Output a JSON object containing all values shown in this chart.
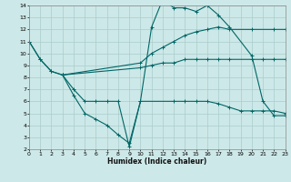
{
  "xlabel": "Humidex (Indice chaleur)",
  "bg_color": "#cde8e8",
  "grid_color": "#aacccc",
  "line_color": "#006666",
  "xlim": [
    0,
    23
  ],
  "ylim": [
    2,
    14
  ],
  "xticks": [
    0,
    1,
    2,
    3,
    4,
    5,
    6,
    7,
    8,
    9,
    10,
    11,
    12,
    13,
    14,
    15,
    16,
    17,
    18,
    19,
    20,
    21,
    22,
    23
  ],
  "yticks": [
    2,
    3,
    4,
    5,
    6,
    7,
    8,
    9,
    10,
    11,
    12,
    13,
    14
  ],
  "lines": [
    {
      "x": [
        0,
        1,
        2,
        3,
        10,
        11,
        12,
        13,
        14,
        15,
        16,
        17,
        18,
        20,
        22,
        23
      ],
      "y": [
        11,
        9.5,
        8.5,
        8.2,
        9.2,
        10.0,
        10.5,
        11.0,
        11.5,
        11.8,
        12.0,
        12.2,
        12.0,
        12.0,
        12.0,
        12.0
      ]
    },
    {
      "x": [
        0,
        1,
        2,
        3,
        4,
        5,
        6,
        7,
        8,
        9,
        10,
        11,
        12,
        13,
        14,
        15,
        16,
        17,
        18,
        20,
        21,
        22,
        23
      ],
      "y": [
        11,
        9.5,
        8.5,
        8.2,
        7.0,
        6.0,
        6.0,
        6.0,
        6.0,
        2.2,
        6.0,
        12.2,
        14.5,
        13.8,
        13.8,
        13.5,
        14.0,
        13.2,
        12.2,
        9.8,
        6.0,
        4.8,
        4.8
      ]
    },
    {
      "x": [
        3,
        4,
        5,
        6,
        7,
        8,
        9,
        10,
        13,
        14,
        15,
        16,
        17,
        18,
        19,
        20,
        21,
        22,
        23
      ],
      "y": [
        8.2,
        6.5,
        5.0,
        4.5,
        4.0,
        3.2,
        2.5,
        6.0,
        6.0,
        6.0,
        6.0,
        6.0,
        5.8,
        5.5,
        5.2,
        5.2,
        5.2,
        5.2,
        5.0
      ]
    },
    {
      "x": [
        3,
        10,
        11,
        12,
        13,
        14,
        15,
        16,
        17,
        18,
        20,
        21,
        22,
        23
      ],
      "y": [
        8.2,
        8.8,
        9.0,
        9.2,
        9.2,
        9.5,
        9.5,
        9.5,
        9.5,
        9.5,
        9.5,
        9.5,
        9.5,
        9.5
      ]
    }
  ]
}
